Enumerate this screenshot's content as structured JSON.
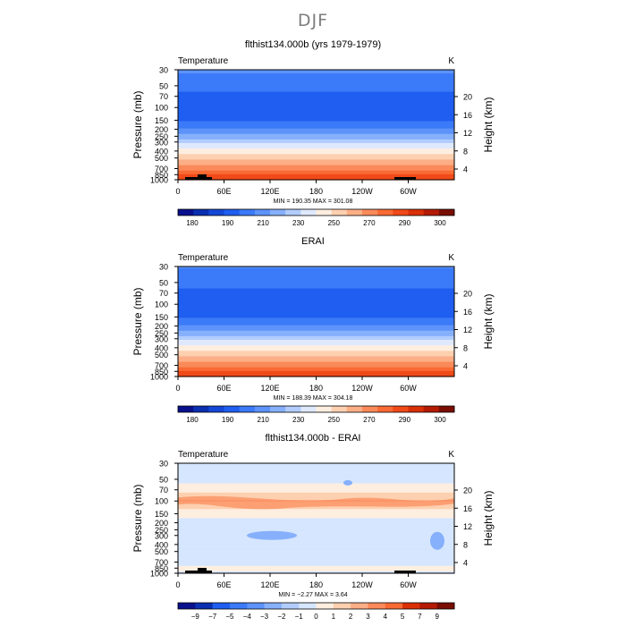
{
  "figure": {
    "season": "DJF"
  },
  "chart_data": [
    {
      "type": "heatmap",
      "title": "flthist134.000b (yrs 1979-1979)",
      "variable_label": "Temperature",
      "units": "K",
      "xlabel": "",
      "ylabel": "Pressure (mb)",
      "ylabel_right": "Height (km)",
      "x_ticks": [
        "0",
        "60E",
        "120E",
        "180",
        "120W",
        "60W"
      ],
      "y_ticks": [
        "30",
        "50",
        "70",
        "100",
        "150",
        "200",
        "250",
        "300",
        "400",
        "500",
        "700",
        "850",
        "1000"
      ],
      "y_right_ticks": [
        "20",
        "16",
        "12",
        "8",
        "4"
      ],
      "stats": "MIN = 190.35   MAX = 301.08",
      "colorbar_labels": [
        "180",
        "190",
        "210",
        "230",
        "250",
        "270",
        "290",
        "300"
      ],
      "profile": [
        {
          "p": 30,
          "v": 214
        },
        {
          "p": 50,
          "v": 207
        },
        {
          "p": 70,
          "v": 203
        },
        {
          "p": 100,
          "v": 201
        },
        {
          "p": 150,
          "v": 204
        },
        {
          "p": 200,
          "v": 213
        },
        {
          "p": 250,
          "v": 224
        },
        {
          "p": 300,
          "v": 232
        },
        {
          "p": 400,
          "v": 246
        },
        {
          "p": 500,
          "v": 255
        },
        {
          "p": 700,
          "v": 270
        },
        {
          "p": 850,
          "v": 280
        },
        {
          "p": 1000,
          "v": 287
        }
      ],
      "terrain": true
    },
    {
      "type": "heatmap",
      "title": "ERAI",
      "variable_label": "Temperature",
      "units": "K",
      "xlabel": "",
      "ylabel": "Pressure (mb)",
      "ylabel_right": "Height (km)",
      "x_ticks": [
        "0",
        "60E",
        "120E",
        "180",
        "120W",
        "60W"
      ],
      "y_ticks": [
        "30",
        "50",
        "70",
        "100",
        "150",
        "200",
        "250",
        "300",
        "400",
        "500",
        "700",
        "850",
        "1000"
      ],
      "y_right_ticks": [
        "20",
        "16",
        "12",
        "8",
        "4"
      ],
      "stats": "MIN = 188.39   MAX = 304.18",
      "colorbar_labels": [
        "180",
        "190",
        "210",
        "230",
        "250",
        "270",
        "290",
        "300"
      ],
      "profile": [
        {
          "p": 30,
          "v": 213
        },
        {
          "p": 50,
          "v": 207
        },
        {
          "p": 70,
          "v": 203
        },
        {
          "p": 100,
          "v": 200
        },
        {
          "p": 150,
          "v": 204
        },
        {
          "p": 200,
          "v": 213
        },
        {
          "p": 250,
          "v": 224
        },
        {
          "p": 300,
          "v": 232
        },
        {
          "p": 400,
          "v": 246
        },
        {
          "p": 500,
          "v": 255
        },
        {
          "p": 700,
          "v": 270
        },
        {
          "p": 850,
          "v": 280
        },
        {
          "p": 1000,
          "v": 287
        }
      ],
      "terrain": false
    },
    {
      "type": "heatmap",
      "title": "flthist134.000b - ERAI",
      "variable_label": "Temperature",
      "units": "K",
      "xlabel": "",
      "ylabel": "Pressure (mb)",
      "ylabel_right": "Height (km)",
      "x_ticks": [
        "0",
        "60E",
        "120E",
        "180",
        "120W",
        "60W"
      ],
      "y_ticks": [
        "30",
        "50",
        "70",
        "100",
        "150",
        "200",
        "250",
        "300",
        "400",
        "500",
        "700",
        "850",
        "1000"
      ],
      "y_right_ticks": [
        "20",
        "16",
        "12",
        "8",
        "4"
      ],
      "stats": "MIN = −2.27   MAX =     3.64",
      "colorbar_labels": [
        "−9",
        "−7",
        "−5",
        "−4",
        "−3",
        "−2",
        "−1",
        "0",
        "1",
        "2",
        "3",
        "4",
        "5",
        "7",
        "9"
      ],
      "profile": [
        {
          "p": 30,
          "v": -0.3
        },
        {
          "p": 50,
          "v": -0.3
        },
        {
          "p": 70,
          "v": 0.6
        },
        {
          "p": 100,
          "v": 2.1
        },
        {
          "p": 150,
          "v": 0.3
        },
        {
          "p": 200,
          "v": -0.4
        },
        {
          "p": 250,
          "v": -0.6
        },
        {
          "p": 300,
          "v": -0.7
        },
        {
          "p": 400,
          "v": -0.5
        },
        {
          "p": 500,
          "v": -0.4
        },
        {
          "p": 700,
          "v": -0.3
        },
        {
          "p": 850,
          "v": 0.2
        },
        {
          "p": 1000,
          "v": -0.2
        }
      ],
      "terrain": true
    }
  ],
  "palette": {
    "abs": [
      "#08108c",
      "#0a2fb0",
      "#1448d6",
      "#1f5ef0",
      "#3b7af8",
      "#5d93fa",
      "#86b0fb",
      "#b2cdfd",
      "#dfe9fe",
      "#feeee0",
      "#fdd0b0",
      "#fcae86",
      "#fb8a5a",
      "#f96a34",
      "#f04a18",
      "#d93008",
      "#b41a04",
      "#7a0e02"
    ],
    "diff": [
      "#08108c",
      "#0a2fb0",
      "#1f5ef0",
      "#3b7af8",
      "#5d93fa",
      "#86b0fb",
      "#b2cdfd",
      "#d5e6fe",
      "#feeee0",
      "#fdd0b0",
      "#fcae86",
      "#fb8a5a",
      "#f96a34",
      "#d93008",
      "#b41a04",
      "#7a0e02"
    ],
    "terrain": "#000000"
  }
}
